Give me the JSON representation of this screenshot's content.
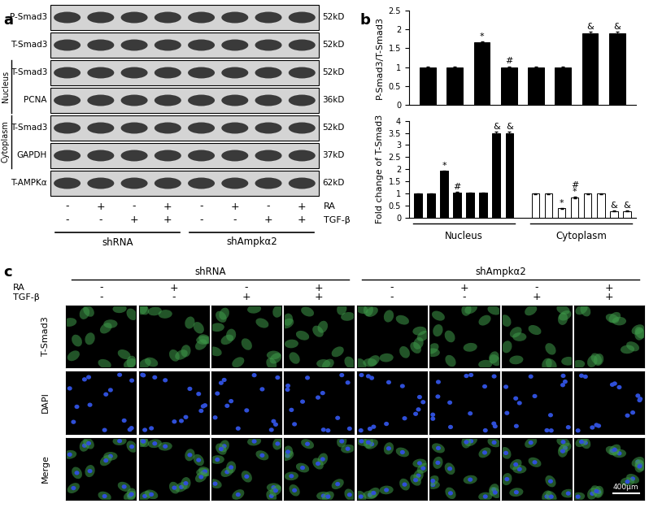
{
  "panel_labels": [
    "a",
    "b",
    "c"
  ],
  "treatments": [
    {
      "label": "RA",
      "signs": [
        "-",
        "+",
        "-",
        "+",
        "-",
        "+",
        "-",
        "+"
      ]
    },
    {
      "label": "TGF-β",
      "signs": [
        "-",
        "-",
        "+",
        "+",
        "-",
        "-",
        "+",
        "+"
      ]
    }
  ],
  "groups": [
    "shRNA",
    "shAmpkα2"
  ],
  "blot": {
    "rows": [
      {
        "label": "P-Smad3",
        "size": "52kD"
      },
      {
        "label": "T-Smad3",
        "size": "52kD"
      },
      {
        "label": "T-Smad3",
        "size": "52kD",
        "section": "Nucleus"
      },
      {
        "label": "PCNA",
        "size": "36kD",
        "section": "Nucleus"
      },
      {
        "label": "T-Smad3",
        "size": "52kD",
        "section": "Cytoplasm"
      },
      {
        "label": "GAPDH",
        "size": "37kD",
        "section": "Cytoplasm"
      },
      {
        "label": "T-AMPKα",
        "size": "62kD"
      }
    ]
  },
  "chart_data": [
    {
      "type": "bar",
      "y_label": "P-Smad3/T-Smad3",
      "categories": [
        null,
        null,
        null,
        null,
        null,
        null,
        null,
        null
      ],
      "values": [
        1,
        1,
        1.65,
        1.0,
        1,
        1,
        1.9,
        1.9
      ],
      "errors": [
        0.02,
        0.02,
        0.03,
        0.02,
        0.02,
        0.02,
        0.03,
        0.03
      ],
      "annotations": [
        null,
        null,
        "*",
        "#",
        null,
        null,
        "&",
        "&"
      ],
      "color": "#000000",
      "ylim": [
        0,
        2.5
      ],
      "yticks": [
        0,
        0.5,
        1,
        1.5,
        2,
        2.5
      ],
      "tick_labels": "y"
    },
    {
      "type": "bar",
      "y_label": "Fold change of T-Smad3",
      "categories": [
        null,
        null,
        null,
        null,
        null,
        null,
        null,
        null
      ],
      "series": [
        {
          "name": "Nucleus",
          "color": "#000000",
          "values": [
            1,
            1,
            1.93,
            1.05,
            1.03,
            1.03,
            3.5,
            3.5
          ],
          "errors": [
            0.02,
            0.02,
            0.03,
            0.02,
            0.02,
            0.02,
            0.05,
            0.05
          ],
          "annotations": [
            null,
            null,
            "*",
            "#",
            null,
            null,
            "&",
            "&"
          ]
        },
        {
          "name": "Cytoplasm",
          "color": "#ffffff",
          "values": [
            1,
            1,
            0.4,
            0.85,
            1,
            1,
            0.28,
            0.28
          ],
          "errors": [
            0.02,
            0.02,
            0.02,
            0.03,
            0.02,
            0.02,
            0.02,
            0.02
          ],
          "annotations": [
            null,
            null,
            "*",
            "#\n*",
            null,
            null,
            "&",
            "&"
          ]
        }
      ],
      "ylim": [
        0,
        4
      ],
      "yticks": [
        0,
        0.5,
        1,
        1.5,
        2,
        2.5,
        3,
        3.5,
        4
      ],
      "tick_labels": "y"
    }
  ],
  "images": {
    "rows": [
      "T-Smad3",
      "DAPI",
      "Merge"
    ],
    "scale_bar": "400μm"
  }
}
